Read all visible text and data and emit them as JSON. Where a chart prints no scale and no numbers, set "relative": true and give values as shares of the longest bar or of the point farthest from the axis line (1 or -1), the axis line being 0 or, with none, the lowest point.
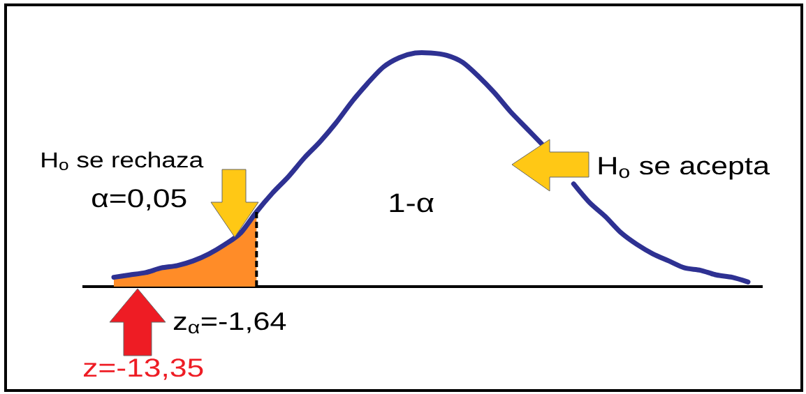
{
  "chart_data": {
    "type": "line",
    "relative": true,
    "categories": [
      null,
      null,
      null,
      null,
      null,
      null,
      null,
      null,
      null,
      null,
      null,
      null,
      null,
      null,
      null,
      null,
      null,
      null,
      null,
      null,
      null,
      null,
      null,
      null,
      null,
      null,
      null,
      null,
      null,
      null,
      null,
      null,
      null,
      null,
      null,
      null,
      null,
      null,
      null,
      null,
      null
    ],
    "series": [
      {
        "color": "#2e3192",
        "values": [
          0.04,
          0.05,
          0.06,
          0.08,
          0.09,
          0.11,
          0.14,
          0.18,
          0.23,
          0.32,
          0.4,
          0.47,
          0.55,
          0.62,
          0.7,
          0.79,
          0.87,
          0.94,
          0.98,
          1.0,
          1.0,
          0.99,
          0.96,
          0.9,
          0.83,
          0.75,
          0.68,
          0.61,
          null,
          0.44,
          0.36,
          0.3,
          0.23,
          0.18,
          0.14,
          0.11,
          0.08,
          0.07,
          0.05,
          0.04,
          0.02
        ]
      },
      {
        "type": "area",
        "color": "#ff8c28",
        "values": [
          0.04,
          0.05,
          0.06,
          0.08,
          0.09,
          0.11,
          0.14,
          0.18,
          0.23,
          0.32,
          null,
          null,
          null,
          null,
          null,
          null,
          null,
          null,
          null,
          null,
          null,
          null,
          null,
          null,
          null,
          null,
          null,
          null,
          null,
          null,
          null,
          null,
          null,
          null,
          null,
          null,
          null,
          null,
          null,
          null,
          null
        ]
      }
    ],
    "annotations": [
      "H$_{o}$ se rechaza",
      "α=0,05",
      "1-α",
      "H$_{o}$ se acepta",
      "z$_{α}$=-1,64",
      "z=-13,35"
    ]
  }
}
